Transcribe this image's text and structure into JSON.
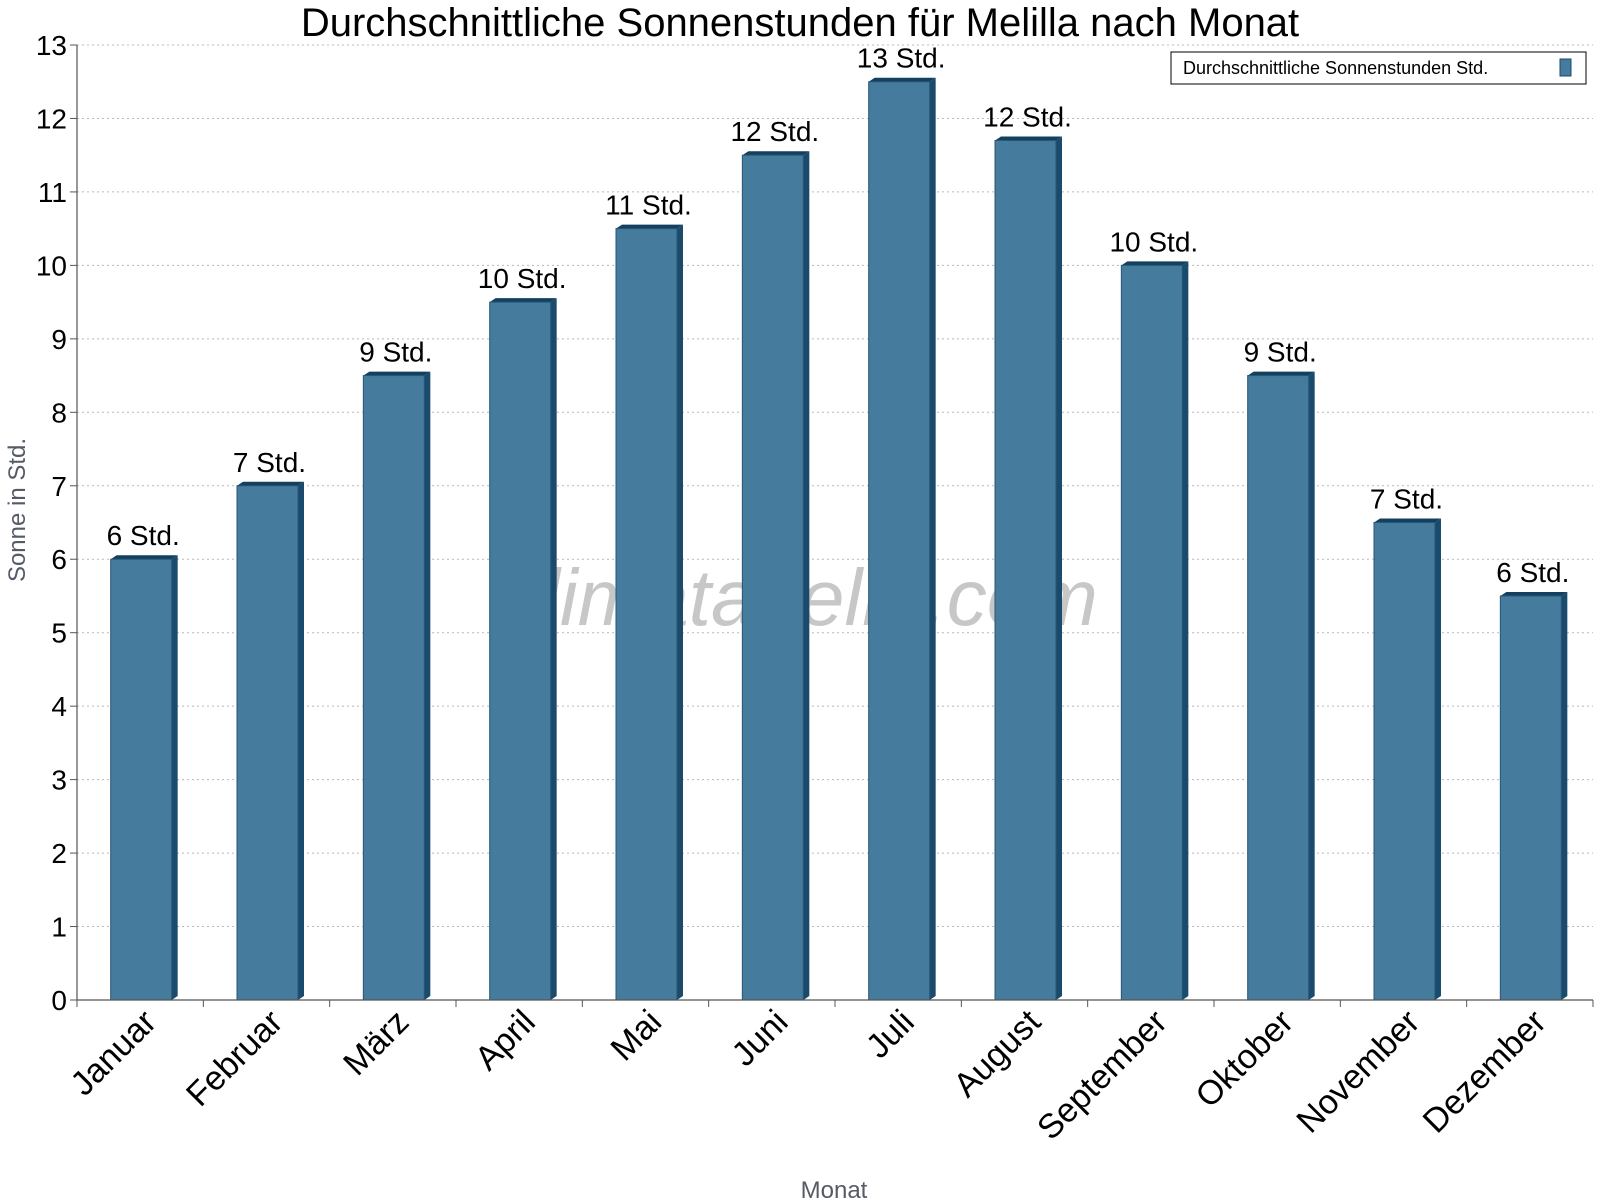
{
  "chart_data": {
    "type": "bar",
    "title": "Durchschnittliche Sonnenstunden für Melilla nach Monat",
    "xlabel": "Monat",
    "ylabel": "Sonne in Std.",
    "ylim": [
      0,
      13
    ],
    "yticks": [
      "0",
      "1",
      "2",
      "3",
      "4",
      "5",
      "6",
      "7",
      "8",
      "9",
      "10",
      "11",
      "12",
      "13"
    ],
    "grid": true,
    "legend_position": "top-right",
    "watermark": "klimatabelle.com",
    "categories": [
      "Januar",
      "Februar",
      "März",
      "April",
      "Mai",
      "Juni",
      "Juli",
      "August",
      "September",
      "Oktober",
      "November",
      "Dezember"
    ],
    "series": [
      {
        "name": "Durchschnittliche Sonnenstunden Std.",
        "color": "#457b9d",
        "values": [
          6,
          7,
          8.5,
          9.5,
          10.5,
          11.5,
          12.5,
          11.7,
          10,
          8.5,
          6.5,
          5.5
        ],
        "labels": [
          "6 Std.",
          "7 Std.",
          "9 Std.",
          "10 Std.",
          "11 Std.",
          "12 Std.",
          "13 Std.",
          "12 Std.",
          "10 Std.",
          "9 Std.",
          "7 Std.",
          "6 Std."
        ]
      }
    ]
  }
}
